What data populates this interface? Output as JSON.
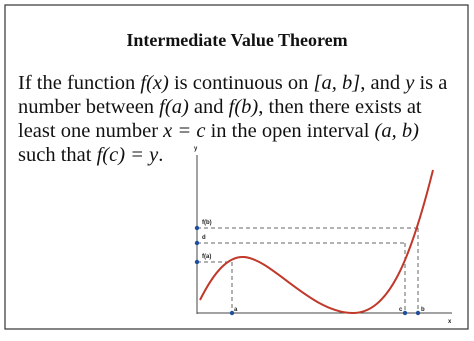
{
  "header": {
    "title": "Intermediate Value Theorem"
  },
  "body": {
    "lines": [
      [
        "If the function ",
        "f(x)",
        " is continuous on ",
        "[a, b]",
        ", and ",
        "y",
        " is a"
      ],
      [
        "number between ",
        "f(a)",
        " and ",
        "f(b)",
        ", then there exists at"
      ],
      [
        "least one number ",
        "x = c",
        " in the open interval ",
        "(a, b)"
      ],
      [
        "such that ",
        "f(c) = y",
        "."
      ]
    ]
  },
  "graph": {
    "y_axis_label": "y",
    "x_axis_label": "x",
    "fb_label": "f(b)",
    "d_label": "d",
    "fa_label": "f(a)",
    "a_label": "a",
    "c_label": "c",
    "b_label": "b"
  }
}
